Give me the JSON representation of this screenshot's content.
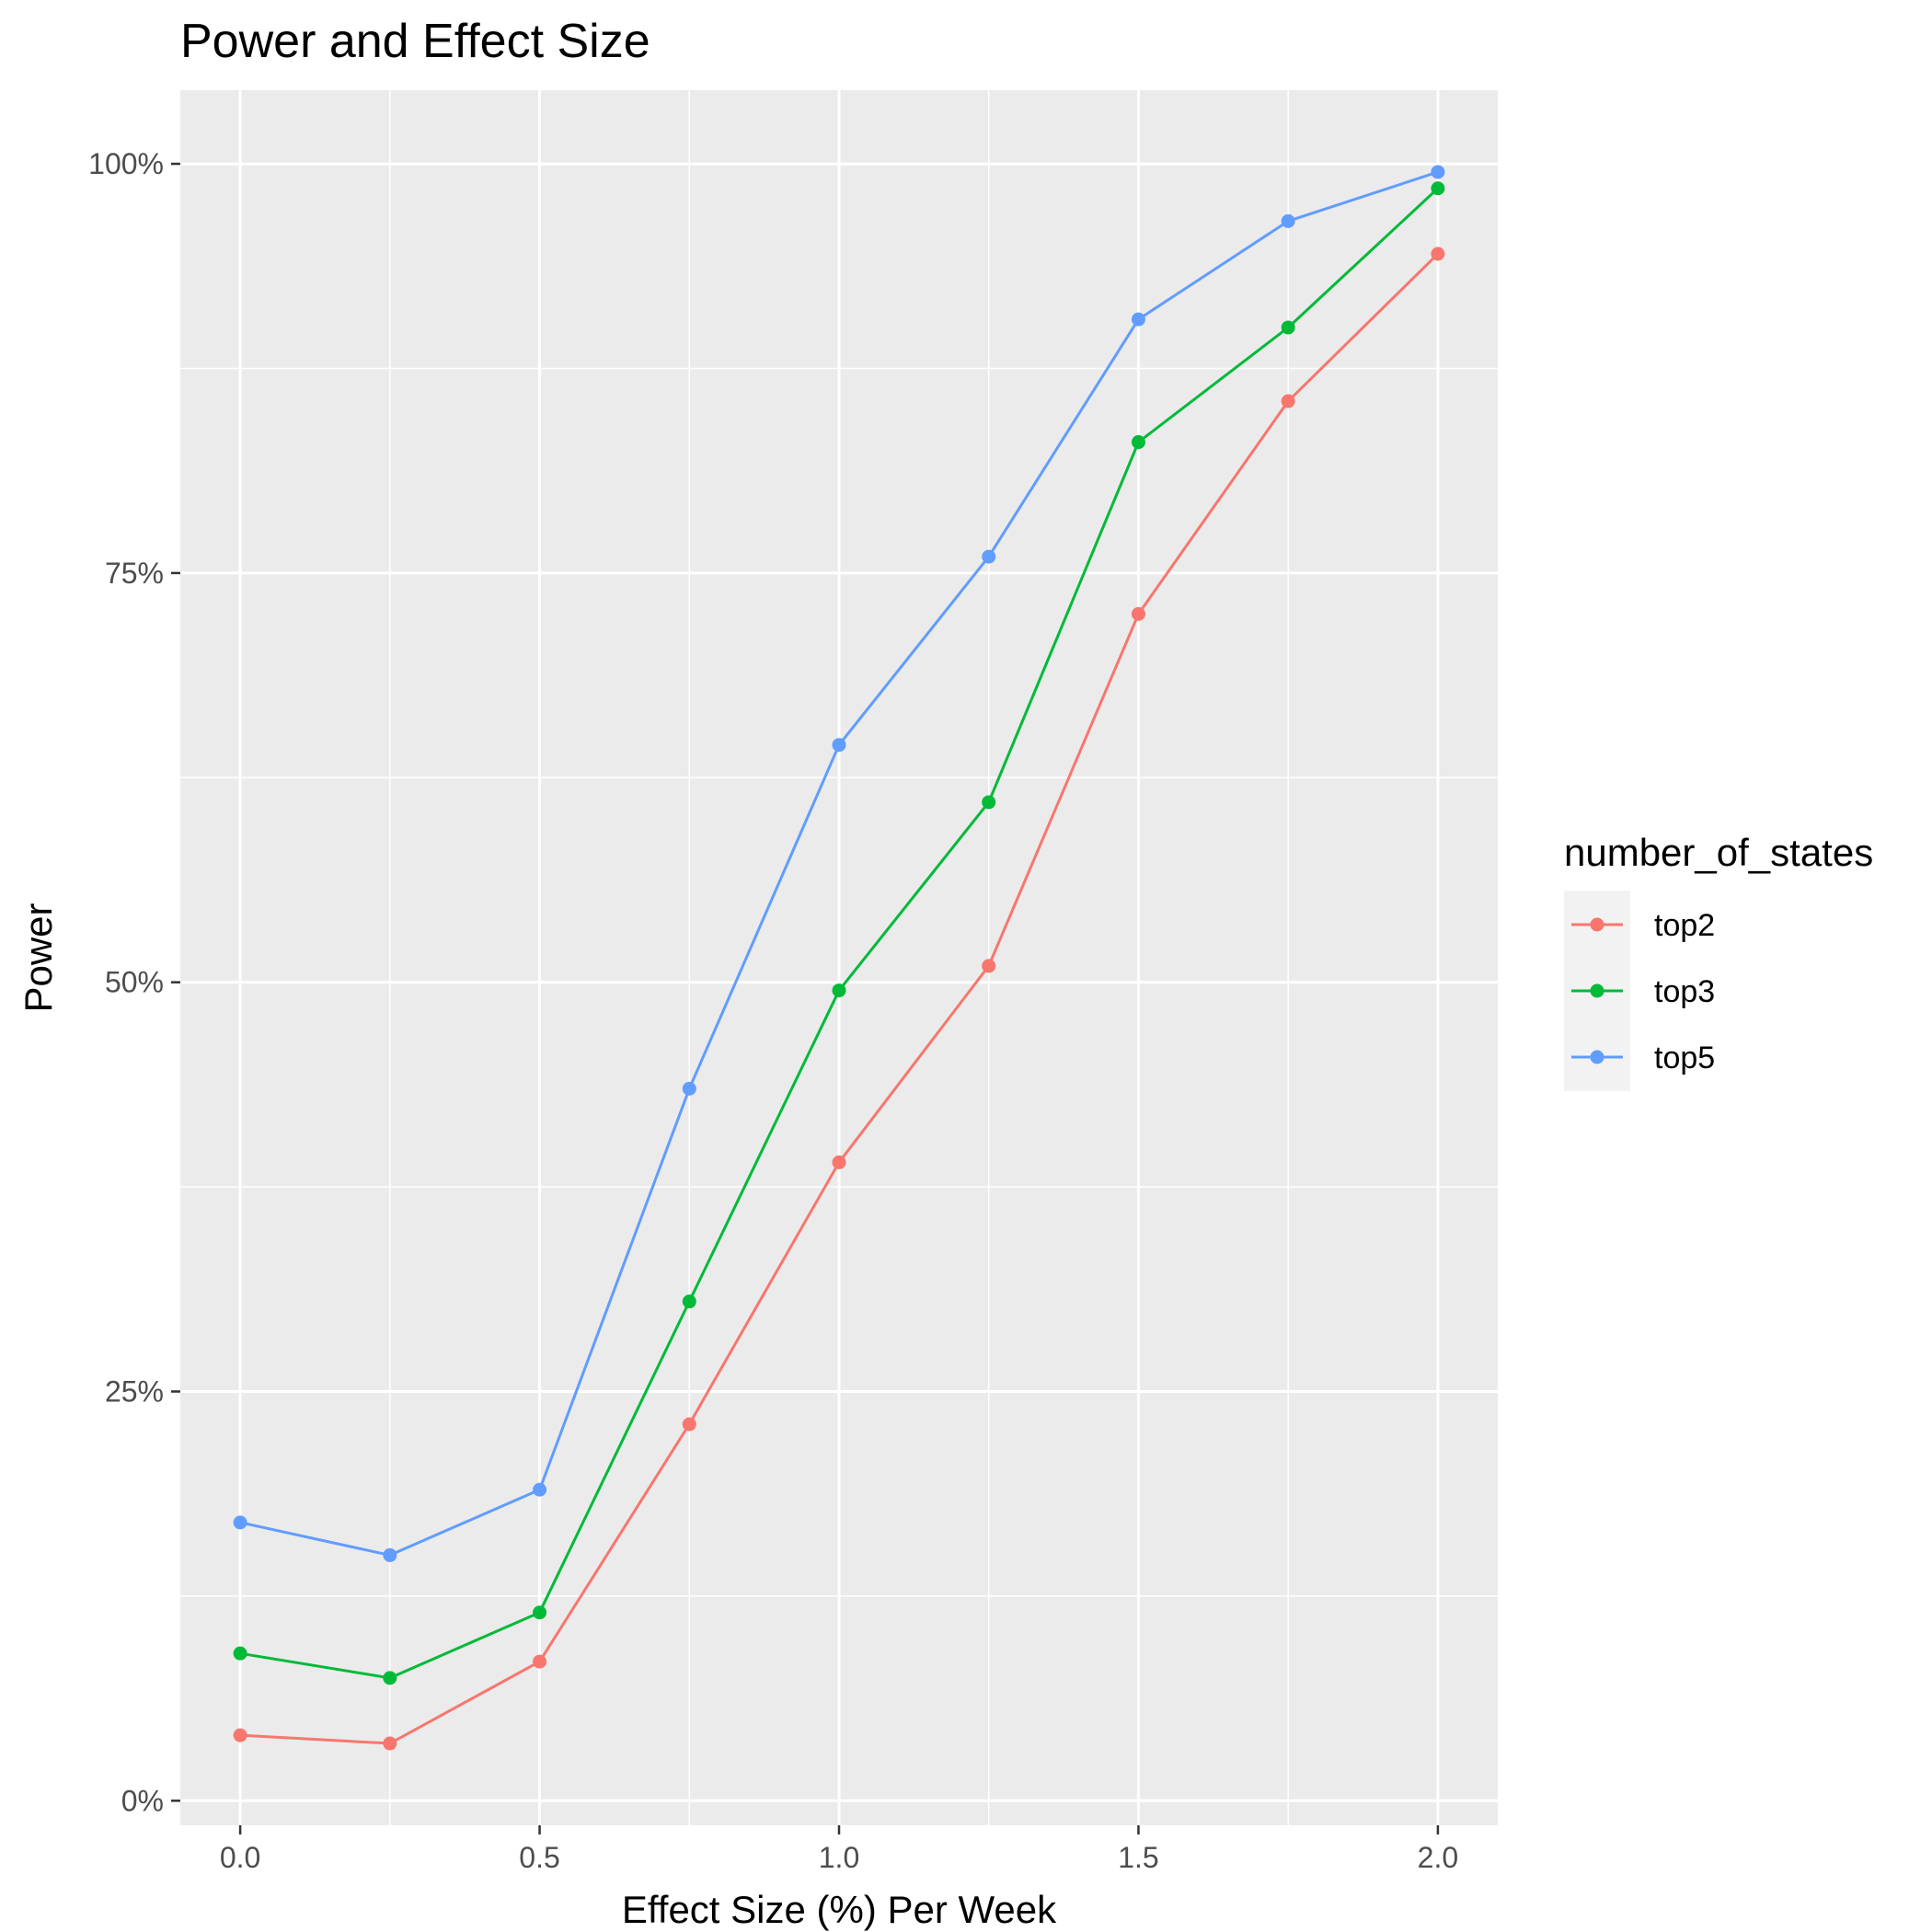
{
  "chart_data": {
    "type": "line",
    "title": "Power and Effect Size",
    "xlabel": "Effect Size (%) Per Week",
    "ylabel": "Power",
    "x": [
      0.0,
      0.25,
      0.5,
      0.75,
      1.0,
      1.25,
      1.5,
      1.75,
      2.0
    ],
    "xlim": [
      -0.1,
      2.1
    ],
    "ylim": [
      -0.015,
      1.045
    ],
    "x_ticks": [
      0.0,
      0.5,
      1.0,
      1.5,
      2.0
    ],
    "x_tick_labels": [
      "0.0",
      "0.5",
      "1.0",
      "1.5",
      "2.0"
    ],
    "y_ticks": [
      0,
      0.25,
      0.5,
      0.75,
      1.0
    ],
    "y_tick_labels": [
      "0%",
      "25%",
      "50%",
      "75%",
      "100%"
    ],
    "grid": true,
    "legend": {
      "title": "number_of_states",
      "position": "right"
    },
    "series": [
      {
        "name": "top2",
        "color": "#F8766D",
        "values": [
          0.04,
          0.035,
          0.085,
          0.23,
          0.39,
          0.51,
          0.725,
          0.855,
          0.945
        ]
      },
      {
        "name": "top3",
        "color": "#00BA38",
        "values": [
          0.09,
          0.075,
          0.115,
          0.305,
          0.495,
          0.61,
          0.83,
          0.9,
          0.985
        ]
      },
      {
        "name": "top5",
        "color": "#619CFF",
        "values": [
          0.17,
          0.15,
          0.19,
          0.435,
          0.645,
          0.76,
          0.905,
          0.965,
          0.995
        ]
      }
    ]
  }
}
